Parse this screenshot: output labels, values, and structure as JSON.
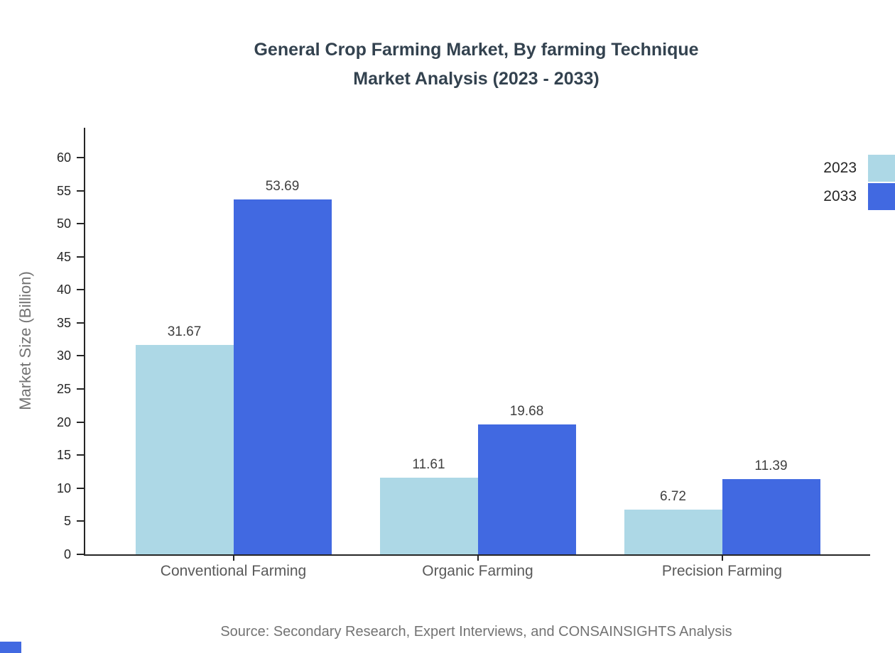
{
  "title": {
    "line1": "General Crop Farming Market, By farming Technique",
    "line2": "Market Analysis (2023 - 2033)"
  },
  "source": "Source: Secondary Research, Expert Interviews, and CONSAINSIGHTS Analysis",
  "colors": {
    "series_2023": "#add8e6",
    "series_2033": "#4169e1",
    "axis": "#262626",
    "title_text": "#33424f",
    "category_label": "#595959",
    "ylabel_text": "#737373",
    "source_text": "#737373",
    "value_label": "#404040",
    "corner_accent": "#4169e1"
  },
  "chart_data": {
    "type": "bar",
    "title": "General Crop Farming Market, By farming Technique Market Analysis (2023 - 2033)",
    "categories": [
      "Conventional Farming",
      "Organic Farming",
      "Precision Farming"
    ],
    "series": [
      {
        "name": "2023",
        "color": "#add8e6",
        "values": [
          31.67,
          11.61,
          6.72
        ]
      },
      {
        "name": "2033",
        "color": "#4169e1",
        "values": [
          53.69,
          19.68,
          11.39
        ]
      }
    ],
    "xlabel": "",
    "ylabel": "Market Size (Billion)",
    "ylim": [
      0,
      64.5
    ],
    "yticks": [
      0,
      5,
      10,
      15,
      20,
      25,
      30,
      35,
      40,
      45,
      50,
      55,
      60
    ],
    "grid": false,
    "legend_position": "top-right",
    "value_labels": true
  }
}
